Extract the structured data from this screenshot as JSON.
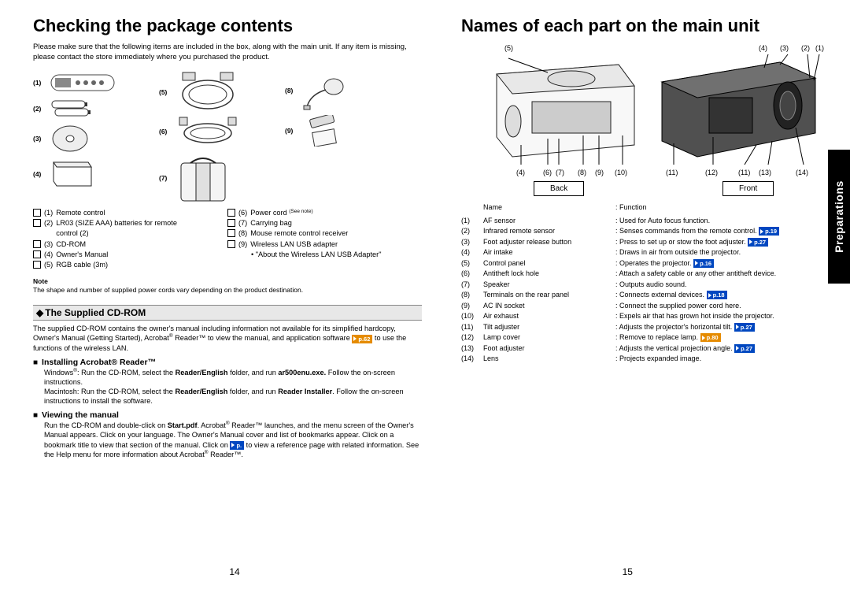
{
  "side_tab": "Preparations",
  "left": {
    "title": "Checking the package contents",
    "intro": "Please make sure that the following items are included in the box, along with the main unit. If any item is missing, please contact the store immediately where you purchased the product.",
    "fig_labels": [
      "(1)",
      "(2)",
      "(3)",
      "(4)",
      "(5)",
      "(6)",
      "(7)",
      "(8)",
      "(9)"
    ],
    "contents_left": [
      {
        "n": "(1)",
        "t": "Remote control"
      },
      {
        "n": "(2)",
        "t": "LR03 (SIZE AAA) batteries for remote control (2)"
      },
      {
        "n": "(3)",
        "t": "CD-ROM"
      },
      {
        "n": "(4)",
        "t": "Owner's Manual"
      },
      {
        "n": "(5)",
        "t": "RGB cable (3m)"
      }
    ],
    "contents_right": [
      {
        "n": "(6)",
        "t": "Power cord ",
        "seenote": "(See note)"
      },
      {
        "n": "(7)",
        "t": "Carrying bag"
      },
      {
        "n": "(8)",
        "t": "Mouse remote control receiver"
      },
      {
        "n": "(9)",
        "t": "Wireless LAN USB adapter"
      }
    ],
    "adapter_sub": "• \"About the Wireless LAN USB Adapter\"",
    "note_head": "Note",
    "note_body": "The shape and number of supplied power cords vary depending on the product destination.",
    "h_cdrom": "The Supplied CD-ROM",
    "cdrom_body_a": "The supplied CD-ROM contains the owner's manual including information not available for its simplified hardcopy, Owner's Manual (Getting Started), Acrobat",
    "cdrom_body_b": " Reader™ to view the manual, and application software ",
    "cdrom_body_c": " to use the functions of the wireless LAN.",
    "pref_62": "p.62",
    "h_install": "Installing Acrobat® Reader™",
    "install_win_a": "Windows",
    "install_win_b": ": Run the CD-ROM, select the ",
    "install_win_c": "Reader/English",
    "install_win_d": " folder, and run ",
    "install_win_e": "ar500enu.exe.",
    "install_win_f": " Follow the on-screen instructions.",
    "install_mac_a": "Macintosh: Run the CD-ROM, select the ",
    "install_mac_b": "Reader/English",
    "install_mac_c": " folder, and run ",
    "install_mac_d": "Reader Installer",
    "install_mac_e": ". Follow the on-screen instructions to install the software.",
    "h_view": "Viewing the manual",
    "view_a": "Run the CD-ROM and double-click on ",
    "view_b": "Start.pdf",
    "view_c": ". Acrobat",
    "view_d": " Reader™ launches, and the menu screen of the Owner's Manual appears. Click on your language. The Owner's Manual cover and list of bookmarks appear. Click on a bookmark title to view that section of the manual. Click on ",
    "pref_p": "p.",
    "view_e": " to view a reference page with related information. See the Help menu for more information about Acrobat",
    "view_f": " Reader™.",
    "page_num": "14"
  },
  "right": {
    "title": "Names of each part on the main unit",
    "top_labels": {
      "l5": "(5)",
      "l4": "(4)",
      "l3": "(3)",
      "l2": "(2)",
      "l1": "(1)"
    },
    "bottom_labels": {
      "l4": "(4)",
      "l6": "(6)",
      "l7": "(7)",
      "l8": "(8)",
      "l9": "(9)",
      "l10": "(10)",
      "l11": "(11)",
      "l12": "(12)",
      "l11b": "(11)",
      "l13": "(13)",
      "l14": "(14)"
    },
    "view_back": "Back",
    "view_front": "Front",
    "th_name": "Name",
    "th_func": ": Function",
    "parts": [
      {
        "n": "(1)",
        "name": "AF sensor",
        "func": ": Used for Auto focus function."
      },
      {
        "n": "(2)",
        "name": "Infrared remote sensor",
        "func": ": Senses commands from the remote control.",
        "ref": "p.19"
      },
      {
        "n": "(3)",
        "name": "Foot adjuster release button",
        "func": ": Press to set up or stow the foot adjuster.",
        "ref": "p.27"
      },
      {
        "n": "(4)",
        "name": "Air intake",
        "func": ": Draws in air from outside the projector."
      },
      {
        "n": "(5)",
        "name": "Control panel",
        "func": ": Operates the projector.",
        "ref": "p.16"
      },
      {
        "n": "(6)",
        "name": "Antitheft lock hole",
        "func": ": Attach a safety cable or any other antitheft device."
      },
      {
        "n": "(7)",
        "name": "Speaker",
        "func": ": Outputs audio sound."
      },
      {
        "n": "(8)",
        "name": "Terminals on the rear panel",
        "func": ": Connects external devices.",
        "ref": "p.18"
      },
      {
        "n": "(9)",
        "name": "AC IN socket",
        "func": ": Connect the supplied power cord here."
      },
      {
        "n": "(10)",
        "name": "Air exhaust",
        "func": ": Expels air that has grown hot inside the projector."
      },
      {
        "n": "(11)",
        "name": "Tilt adjuster",
        "func": ": Adjusts the projector's horizontal tilt.",
        "ref": "p.27"
      },
      {
        "n": "(12)",
        "name": "Lamp cover",
        "func": ": Remove to replace lamp.",
        "ref": "p.80",
        "refclass": "orange"
      },
      {
        "n": "(13)",
        "name": "Foot adjuster",
        "func": ": Adjusts the vertical projection angle.",
        "ref": "p.27"
      },
      {
        "n": "(14)",
        "name": "Lens",
        "func": ": Projects expanded image."
      }
    ],
    "page_num": "15"
  }
}
